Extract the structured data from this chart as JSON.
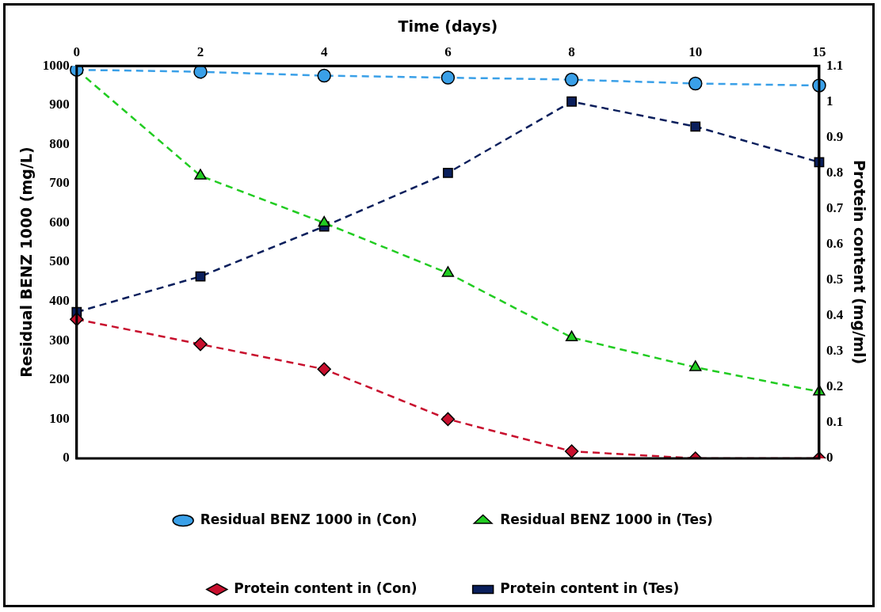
{
  "chart_data": {
    "type": "line",
    "xlabel": "Time (days)",
    "ylabel": "Residual BENZ 1000 (mg/L)",
    "y2label": "Protein content (mg/ml)",
    "categories": [
      "0",
      "2",
      "4",
      "6",
      "8",
      "10",
      "15"
    ],
    "series": [
      {
        "name": "Residual BENZ 1000 in (Con)",
        "color": "#3aa0e8",
        "marker": "circle",
        "values": [
          990,
          985,
          975,
          970,
          965,
          955,
          950
        ]
      },
      {
        "name": "Residual BENZ 1000 in (Tes)",
        "color": "#22cc22",
        "marker": "triangle",
        "values": [
          990,
          720,
          600,
          472,
          308,
          232,
          170
        ]
      },
      {
        "name": "Protein content in (Con)",
        "color": "#c8102e",
        "marker": "diamond",
        "axis": "y2",
        "values": [
          0.39,
          0.32,
          0.25,
          0.11,
          0.02,
          0,
          0
        ]
      },
      {
        "name": "Protein content in (Tes)",
        "color": "#0a1f5c",
        "marker": "square",
        "axis": "y2",
        "values": [
          0.41,
          0.51,
          0.65,
          0.8,
          1.0,
          0.93,
          0.83
        ]
      }
    ],
    "ylim": [
      0,
      1000
    ],
    "yticks": [
      0,
      100,
      200,
      300,
      400,
      500,
      600,
      700,
      800,
      900,
      1000
    ],
    "y2lim": [
      0,
      1.1
    ],
    "y2ticks": [
      0,
      0.1,
      0.2,
      0.3,
      0.4,
      0.5,
      0.6,
      0.7,
      0.8,
      0.9,
      1,
      1.1
    ],
    "grid": false,
    "legend": "bottom",
    "line_style": "dashed"
  }
}
